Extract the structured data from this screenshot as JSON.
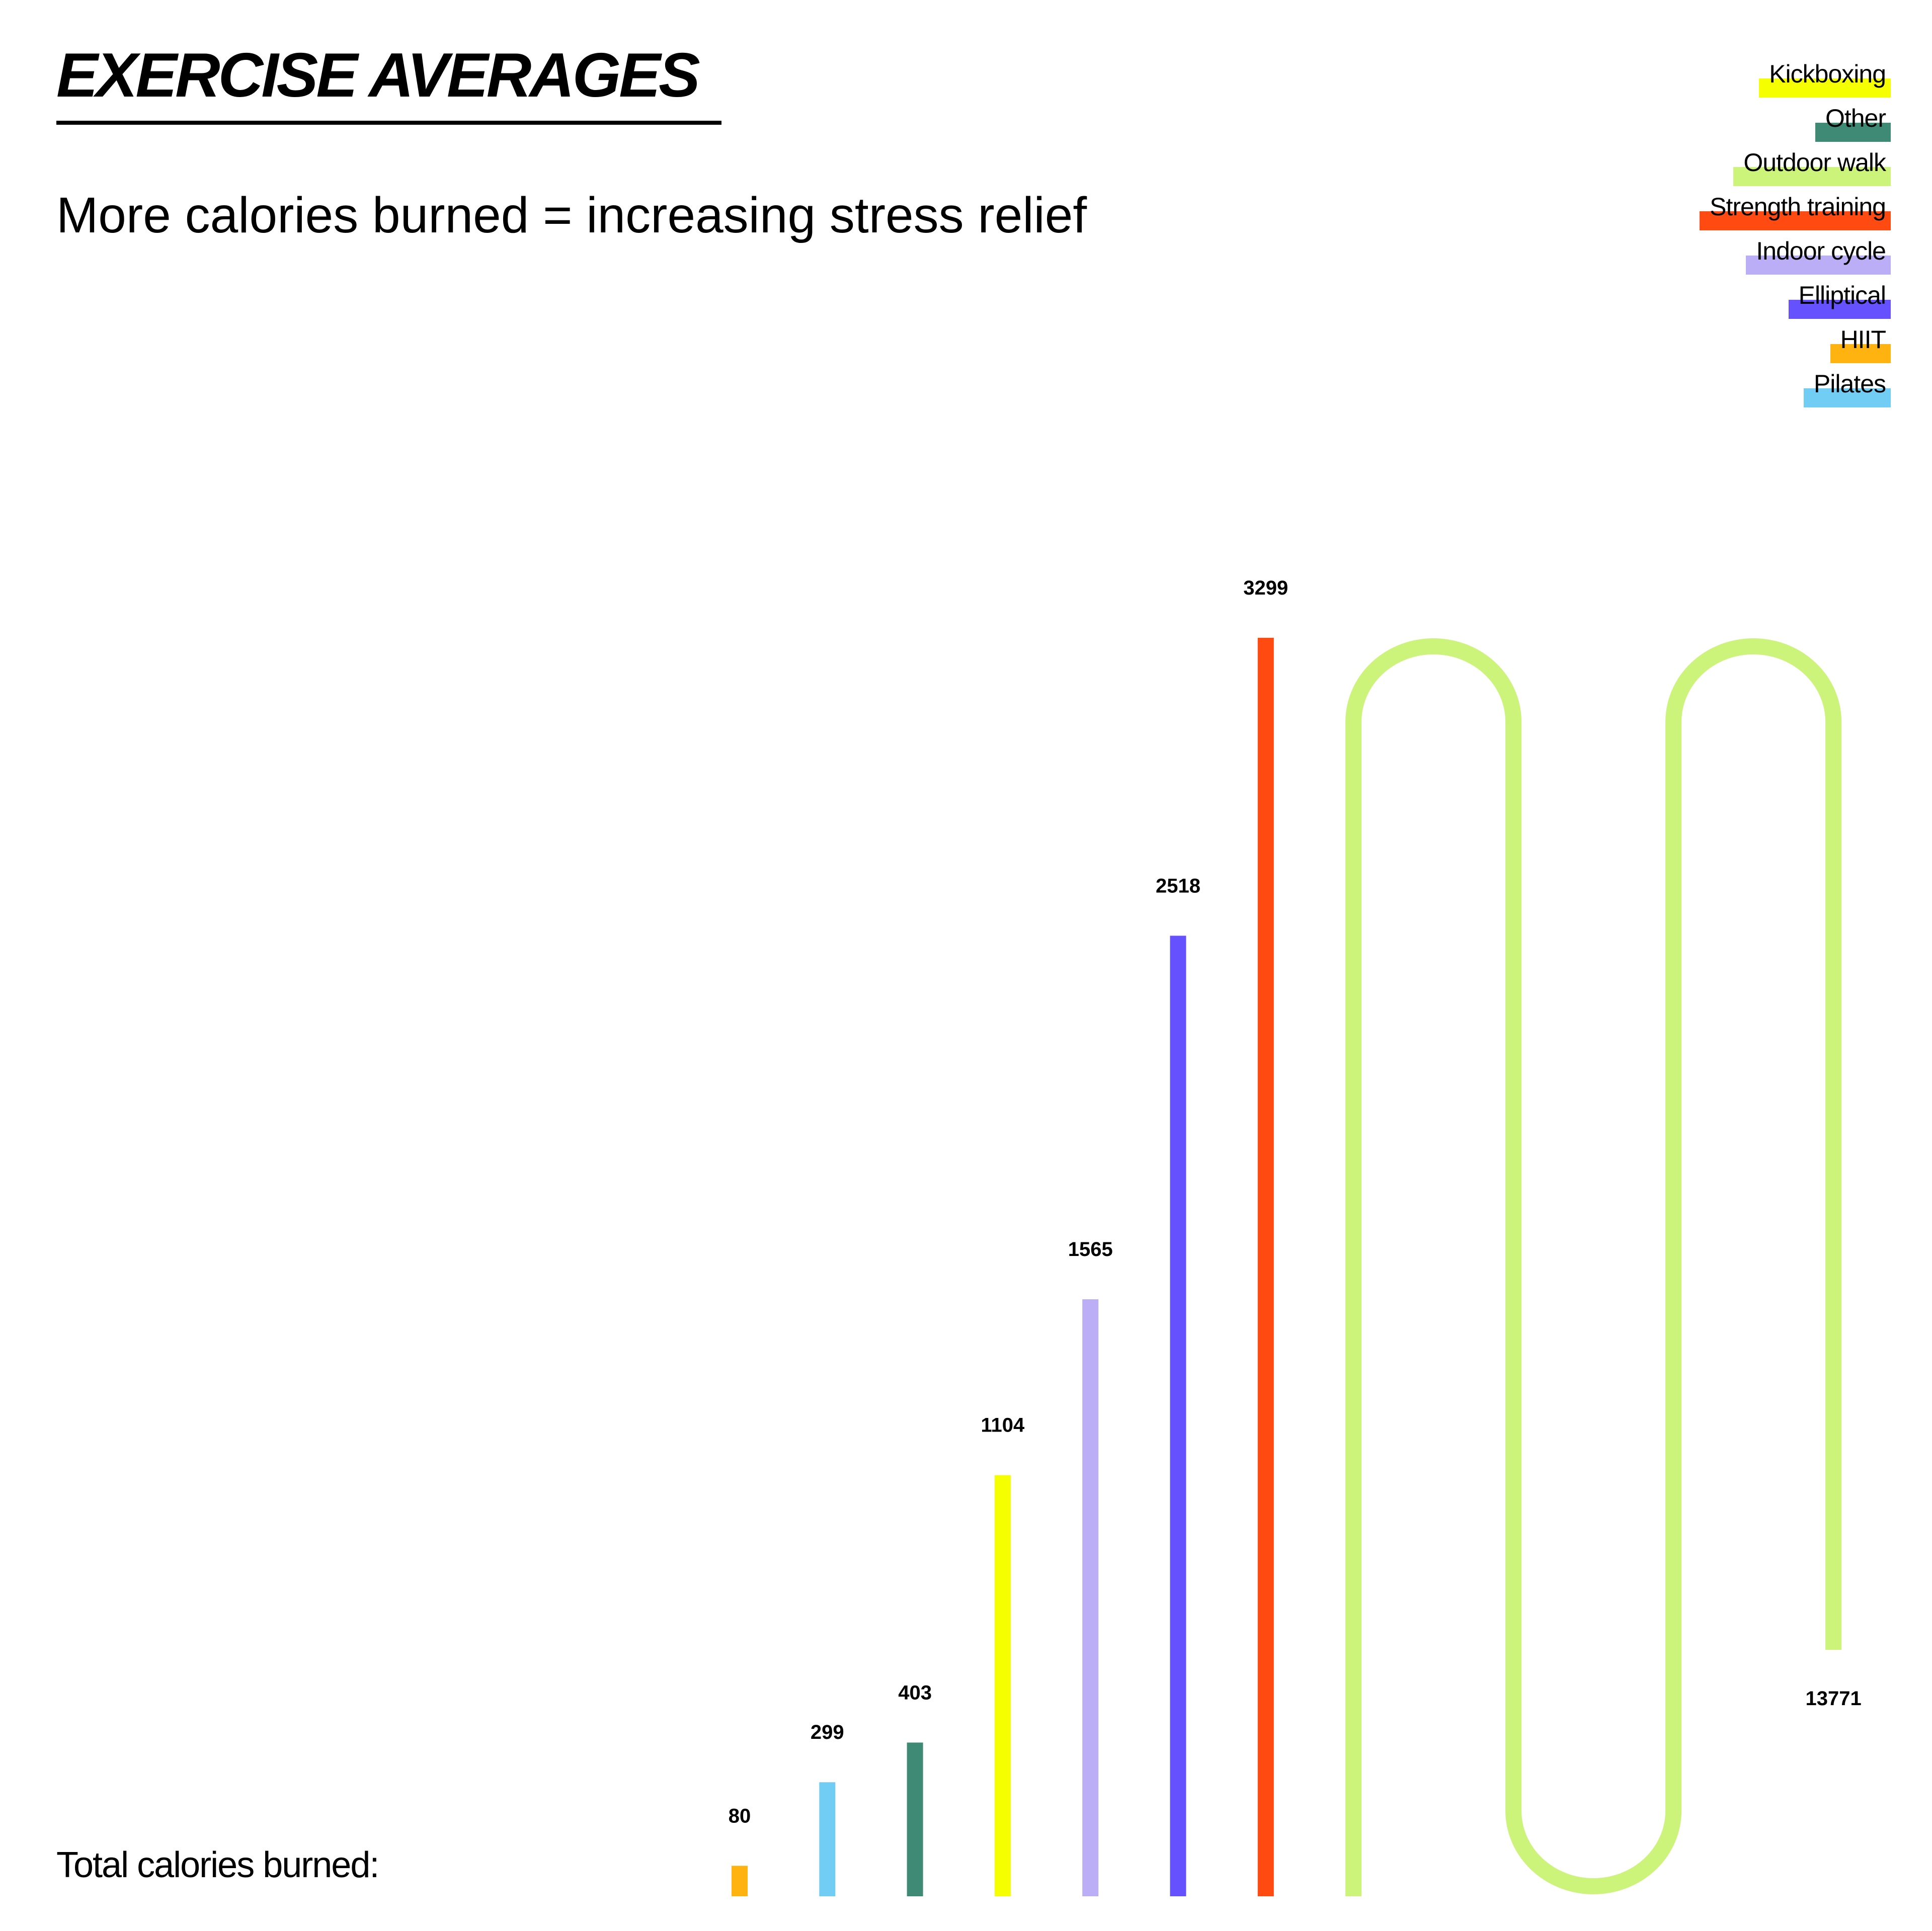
{
  "header": {
    "title": "EXERCISE AVERAGES",
    "subtitle": "More calories burned = increasing stress relief"
  },
  "footer": {
    "total_label": "Total calories burned:"
  },
  "legend": [
    {
      "label": "Kickboxing",
      "color": "#F5FF00"
    },
    {
      "label": "Other",
      "color": "#3F8A74"
    },
    {
      "label": "Outdoor walk",
      "color": "#CCF37A"
    },
    {
      "label": "Strength training",
      "color": "#FF4A12"
    },
    {
      "label": "Indoor cycle",
      "color": "#BBAEF6"
    },
    {
      "label": "Elliptical",
      "color": "#6651FF"
    },
    {
      "label": "HIIT",
      "color": "#FFB310"
    },
    {
      "label": "Pilates",
      "color": "#72CDF4"
    }
  ],
  "chart_data": {
    "type": "bar",
    "title": "EXERCISE AVERAGES",
    "subtitle": "More calories burned = increasing stress relief",
    "xlabel": "Total calories burned:",
    "ylabel": "",
    "categories": [
      "HIIT",
      "Pilates",
      "Other",
      "Kickboxing",
      "Indoor cycle",
      "Elliptical",
      "Strength training",
      "Outdoor walk"
    ],
    "values": [
      80,
      299,
      403,
      1104,
      1565,
      2518,
      3299,
      13771
    ],
    "colors": [
      "#FFB310",
      "#72CDF4",
      "#3F8A74",
      "#F5FF00",
      "#BBAEF6",
      "#6651FF",
      "#FF4A12",
      "#CCF37A"
    ],
    "value_labels": [
      "80",
      "299",
      "403",
      "1104",
      "1565",
      "2518",
      "3299",
      "13771"
    ],
    "legend_position": "top-right",
    "grid": false,
    "notes": "Bars are sorted ascending; the largest bar (Outdoor walk) is drawn as a serpentine line folded to fit."
  }
}
